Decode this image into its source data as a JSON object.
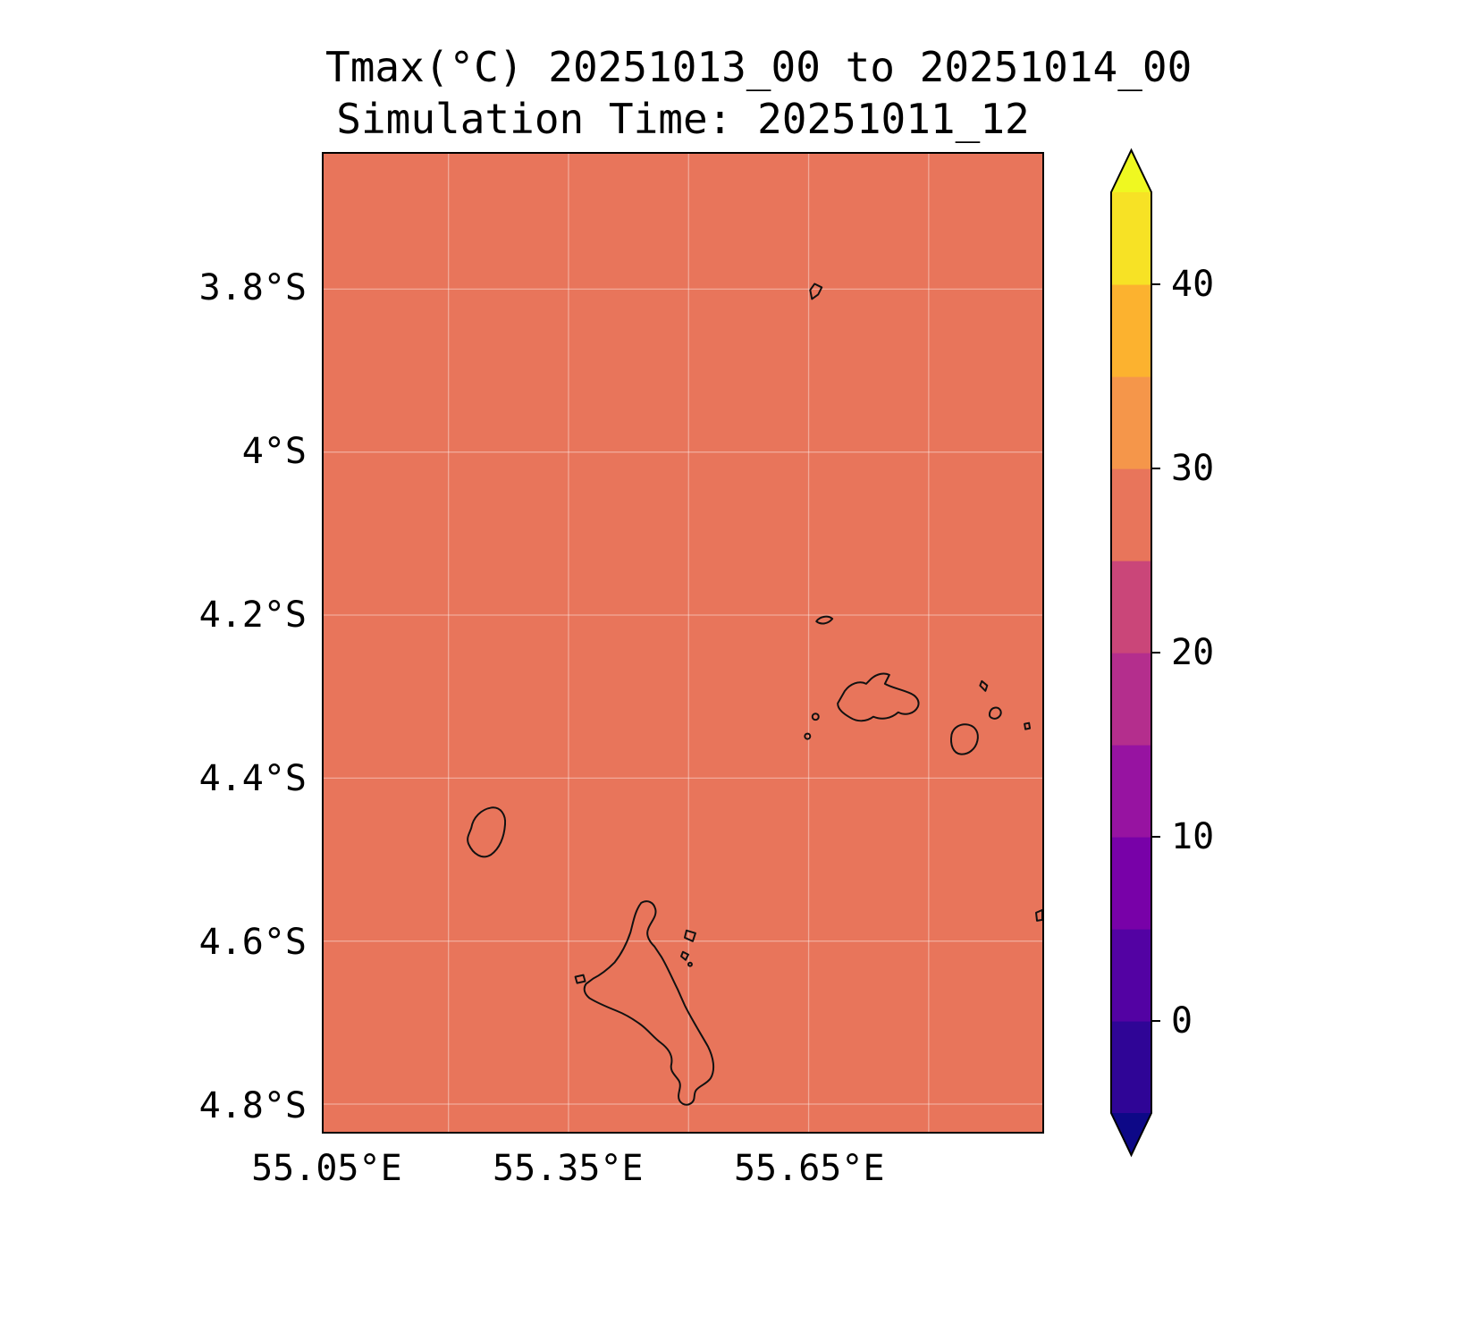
{
  "title": {
    "line1": "Tmax(°C) 20251013_00 to 20251014_00",
    "line2": "Simulation Time: 20251011_12"
  },
  "map": {
    "sea_and_land_fill": "#e8755b",
    "coastline_color": "#111111",
    "region": "Seychelles islands (Silhouette, Praslin, La Digue, Mahé) outlined"
  },
  "axes": {
    "x": {
      "min": 55.044,
      "max": 55.942,
      "ticks": [
        {
          "value": 55.05,
          "label": "55.05°E"
        },
        {
          "value": 55.35,
          "label": "55.35°E"
        },
        {
          "value": 55.65,
          "label": "55.65°E"
        }
      ]
    },
    "y": {
      "min": 3.634,
      "max": 4.834,
      "ticks": [
        {
          "value": 3.8,
          "label": "3.8°S"
        },
        {
          "value": 4.0,
          "label": "4°S"
        },
        {
          "value": 4.2,
          "label": "4.2°S"
        },
        {
          "value": 4.4,
          "label": "4.4°S"
        },
        {
          "value": 4.6,
          "label": "4.6°S"
        },
        {
          "value": 4.8,
          "label": "4.8°S"
        }
      ]
    },
    "grid_lons": [
      55.2,
      55.35,
      55.5,
      55.65,
      55.8
    ],
    "grid_lats": [
      3.8,
      4.0,
      4.2,
      4.4,
      4.6,
      4.8
    ],
    "grid_color": "rgba(255,255,255,0.38)"
  },
  "colorbar": {
    "levels": [
      -5,
      0,
      5,
      10,
      15,
      20,
      25,
      30,
      35,
      40,
      45
    ],
    "band_colors": [
      "#2f0596",
      "#5302a3",
      "#7801a8",
      "#9713a1",
      "#b42e8d",
      "#ca4679",
      "#e8755b",
      "#f5964a",
      "#fcb22f",
      "#f7e225"
    ],
    "under_color": "#0d0887",
    "over_color": "#eff821",
    "tick_values": [
      40,
      30,
      20,
      10,
      0
    ],
    "tick_labels": [
      "40",
      "30",
      "20",
      "10",
      "0"
    ]
  },
  "chart_data": {
    "type": "heatmap",
    "title": "Tmax(°C) 20251013_00 to 20251014_00",
    "subtitle": "Simulation Time: 20251011_12",
    "variable": "Tmax",
    "units": "°C",
    "x_tick_labels": [
      "55.05°E",
      "55.35°E",
      "55.65°E"
    ],
    "y_tick_labels": [
      "3.8°S",
      "4°S",
      "4.2°S",
      "4.4°S",
      "4.6°S",
      "4.8°S"
    ],
    "lon_range_deg_east": [
      55.05,
      55.94
    ],
    "lat_range_deg_south": [
      3.63,
      4.83
    ],
    "colorbar_tick_values": [
      0,
      10,
      20,
      30,
      40
    ],
    "colorbar_level_range": [
      -5,
      45
    ],
    "colorbar_level_step": 5,
    "field_summary": "Tmax is nearly uniform over the entire domain, falling in the 25–30 °C color band (≈28 °C) over ocean and islands alike",
    "uniform_value_estimate_c": 28,
    "legend_position": "right vertical colorbar with over/under extend arrows",
    "grid": true
  }
}
